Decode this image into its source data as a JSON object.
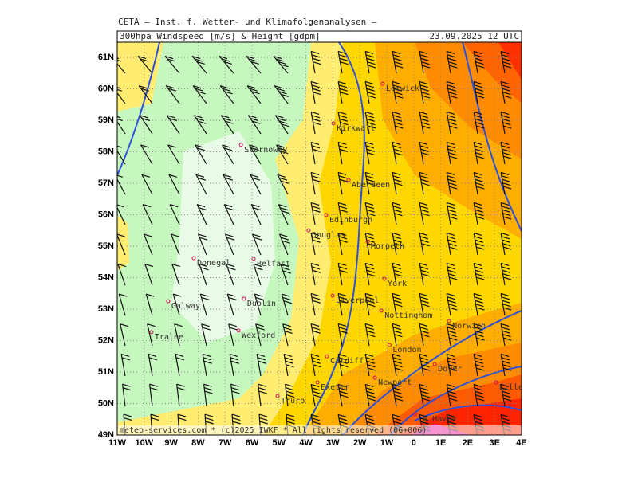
{
  "header": {
    "title": "CETA — Inst. f. Wetter- und Klimafolgenanalysen —",
    "product": "300hpa Windspeed [m/s] & Height [gdpm]",
    "valid": "23.09.2025 12 UTC"
  },
  "map": {
    "lonlim": [
      -11,
      4
    ],
    "latlim": [
      49,
      61.48
    ],
    "lon_ticks": [
      {
        "value": -11,
        "label": "11W"
      },
      {
        "value": -10,
        "label": "10W"
      },
      {
        "value": -9,
        "label": "9W"
      },
      {
        "value": -8,
        "label": "8W"
      },
      {
        "value": -7,
        "label": "7W"
      },
      {
        "value": -6,
        "label": "6W"
      },
      {
        "value": -5,
        "label": "5W"
      },
      {
        "value": -4,
        "label": "4W"
      },
      {
        "value": -3,
        "label": "3W"
      },
      {
        "value": -2,
        "label": "2W"
      },
      {
        "value": -1,
        "label": "1W"
      },
      0,
      {
        "value": 1,
        "label": "1E"
      },
      {
        "value": 2,
        "label": "2E"
      },
      {
        "value": 3,
        "label": "3E"
      },
      {
        "value": 4,
        "label": "4E"
      }
    ],
    "lat_ticks": [
      {
        "value": 49,
        "label": "49N"
      },
      {
        "value": 50,
        "label": "50N"
      },
      {
        "value": 51,
        "label": "51N"
      },
      {
        "value": 52,
        "label": "52N"
      },
      {
        "value": 53,
        "label": "53N"
      },
      {
        "value": 54,
        "label": "54N"
      },
      {
        "value": 55,
        "label": "55N"
      },
      {
        "value": 56,
        "label": "56N"
      },
      {
        "value": 57,
        "label": "57N"
      },
      {
        "value": 58,
        "label": "58N"
      },
      {
        "value": 59,
        "label": "59N"
      },
      {
        "value": 60,
        "label": "60N"
      },
      {
        "value": 61,
        "label": "61N"
      }
    ],
    "cities": [
      {
        "name": "Lerwick",
        "lon": -1.15,
        "lat": 60.16
      },
      {
        "name": "Kirkwall",
        "lon": -2.98,
        "lat": 58.9
      },
      {
        "name": "Stornoway",
        "lon": -6.41,
        "lat": 58.22
      },
      {
        "name": "Aberdeen",
        "lon": -2.42,
        "lat": 57.1
      },
      {
        "name": "Edinburgh",
        "lon": -3.25,
        "lat": 55.99
      },
      {
        "name": "Douglas",
        "lon": -3.9,
        "lat": 55.5
      },
      {
        "name": "Morpeth",
        "lon": -1.71,
        "lat": 55.15
      },
      {
        "name": "Donegal",
        "lon": -8.16,
        "lat": 54.62
      },
      {
        "name": "Belfast",
        "lon": -5.94,
        "lat": 54.6
      },
      {
        "name": "York",
        "lon": -1.09,
        "lat": 53.96
      },
      {
        "name": "Galway",
        "lon": -9.11,
        "lat": 53.25
      },
      {
        "name": "Dublin",
        "lon": -6.3,
        "lat": 53.33
      },
      {
        "name": "Liverpool",
        "lon": -3.01,
        "lat": 53.43
      },
      {
        "name": "Nottingham",
        "lon": -1.2,
        "lat": 52.95
      },
      {
        "name": "Wexford",
        "lon": -6.5,
        "lat": 52.32
      },
      {
        "name": "Tralee",
        "lon": -9.73,
        "lat": 52.27
      },
      {
        "name": "Norwich",
        "lon": 1.31,
        "lat": 52.62
      },
      {
        "name": "Cardiff",
        "lon": -3.22,
        "lat": 51.5
      },
      {
        "name": "London",
        "lon": -0.9,
        "lat": 51.86
      },
      {
        "name": "Dover",
        "lon": 0.78,
        "lat": 51.25
      },
      {
        "name": "Exeter",
        "lon": -3.57,
        "lat": 50.67
      },
      {
        "name": "Newport",
        "lon": -1.44,
        "lat": 50.82
      },
      {
        "name": "Truro",
        "lon": -5.05,
        "lat": 50.24
      },
      {
        "name": "Lille",
        "lon": 3.05,
        "lat": 50.67
      },
      {
        "name": "Le Havre",
        "lon": 0.04,
        "lat": 49.66
      }
    ]
  },
  "footer": "meteo-services.com * (c)2025 IWKF * All rights reserved (06+006)"
}
